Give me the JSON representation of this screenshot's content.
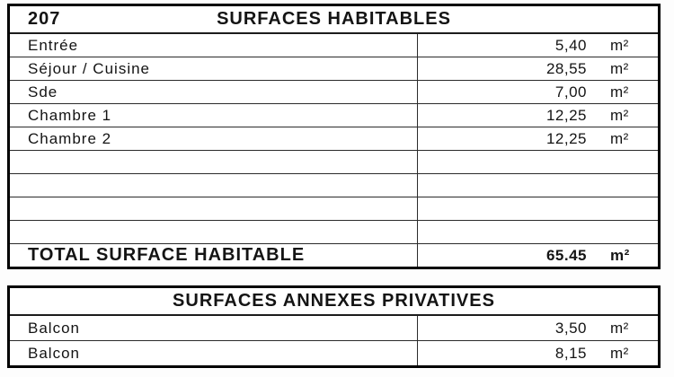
{
  "tables": [
    {
      "unit_number": "207",
      "title": "SURFACES HABITABLES",
      "rows": [
        {
          "label": "Entrée",
          "value": "5,40",
          "unit": "m²"
        },
        {
          "label": "Séjour / Cuisine",
          "value": "28,55",
          "unit": "m²"
        },
        {
          "label": "Sde",
          "value": "7,00",
          "unit": "m²"
        },
        {
          "label": "Chambre 1",
          "value": "12,25",
          "unit": "m²"
        },
        {
          "label": "Chambre 2",
          "value": "12,25",
          "unit": "m²"
        },
        {
          "label": "",
          "value": "",
          "unit": ""
        },
        {
          "label": "",
          "value": "",
          "unit": ""
        },
        {
          "label": "",
          "value": "",
          "unit": ""
        },
        {
          "label": "",
          "value": "",
          "unit": ""
        }
      ],
      "total": {
        "label": "TOTAL SURFACE HABITABLE",
        "value": "65.45",
        "unit": "m²"
      }
    },
    {
      "title": "SURFACES ANNEXES PRIVATIVES",
      "rows": [
        {
          "label": "Balcon",
          "value": "3,50",
          "unit": "m²"
        },
        {
          "label": "Balcon",
          "value": "8,15",
          "unit": "m²"
        }
      ]
    }
  ],
  "colors": {
    "background": "#ffffff",
    "text": "#141414",
    "border_outer": "#000000",
    "border_inner": "#2b2b2b"
  }
}
